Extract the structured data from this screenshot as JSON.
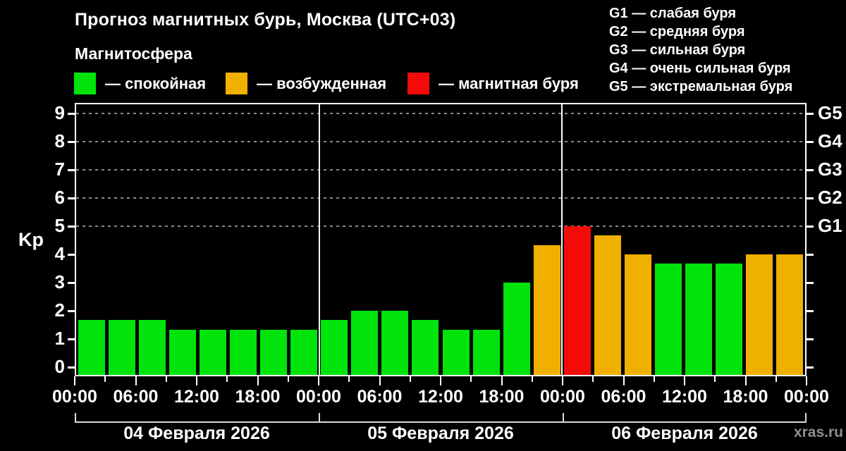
{
  "watermark": "xras.ru",
  "chart_data": {
    "type": "bar",
    "title": "Прогноз магнитных бурь, Москва (UTC+03)",
    "subtitle": "Магнитосфера",
    "ylabel": "Kp",
    "ylim": [
      -0.3,
      9.4
    ],
    "y_ticks": [
      0,
      1,
      2,
      3,
      4,
      5,
      6,
      7,
      8,
      9
    ],
    "dashed_gridlines_kp": [
      5,
      6,
      7,
      8,
      9
    ],
    "right_axis": {
      "labels": [
        {
          "kp": 5,
          "label": "G1"
        },
        {
          "kp": 6,
          "label": "G2"
        },
        {
          "kp": 7,
          "label": "G3"
        },
        {
          "kp": 8,
          "label": "G4"
        },
        {
          "kp": 9,
          "label": "G5"
        }
      ]
    },
    "legend_position": "top",
    "legend": [
      {
        "key": "quiet",
        "label": "— спокойная",
        "color": "#00e40c"
      },
      {
        "key": "excited",
        "label": "— возбужденная",
        "color": "#f0b000"
      },
      {
        "key": "storm",
        "label": "— магнитная буря",
        "color": "#f50a0a"
      }
    ],
    "g_scale_legend": [
      "G1 — слабая буря",
      "G2 — средняя буря",
      "G3 — сильная буря",
      "G4 — очень сильная буря",
      "G5 — экстремальная буря"
    ],
    "bar_interval_hours": 3,
    "x_tick_labels": [
      "00:00",
      "06:00",
      "12:00",
      "18:00",
      "00:00",
      "06:00",
      "12:00",
      "18:00",
      "00:00",
      "06:00",
      "12:00",
      "18:00",
      "00:00"
    ],
    "days": [
      {
        "date": "04 Февраля 2026",
        "bars": [
          {
            "kp": 1.67,
            "status": "quiet"
          },
          {
            "kp": 1.67,
            "status": "quiet"
          },
          {
            "kp": 1.67,
            "status": "quiet"
          },
          {
            "kp": 1.33,
            "status": "quiet"
          },
          {
            "kp": 1.33,
            "status": "quiet"
          },
          {
            "kp": 1.33,
            "status": "quiet"
          },
          {
            "kp": 1.33,
            "status": "quiet"
          },
          {
            "kp": 1.33,
            "status": "quiet"
          }
        ]
      },
      {
        "date": "05 Февраля 2026",
        "bars": [
          {
            "kp": 1.67,
            "status": "quiet"
          },
          {
            "kp": 2.0,
            "status": "quiet"
          },
          {
            "kp": 2.0,
            "status": "quiet"
          },
          {
            "kp": 1.67,
            "status": "quiet"
          },
          {
            "kp": 1.33,
            "status": "quiet"
          },
          {
            "kp": 1.33,
            "status": "quiet"
          },
          {
            "kp": 3.0,
            "status": "quiet"
          },
          {
            "kp": 4.33,
            "status": "excited"
          }
        ]
      },
      {
        "date": "06 Февраля 2026",
        "bars": [
          {
            "kp": 5.0,
            "status": "storm"
          },
          {
            "kp": 4.67,
            "status": "excited"
          },
          {
            "kp": 4.0,
            "status": "excited"
          },
          {
            "kp": 3.67,
            "status": "quiet"
          },
          {
            "kp": 3.67,
            "status": "quiet"
          },
          {
            "kp": 3.67,
            "status": "quiet"
          },
          {
            "kp": 4.0,
            "status": "excited"
          },
          {
            "kp": 4.0,
            "status": "excited"
          }
        ]
      }
    ]
  }
}
